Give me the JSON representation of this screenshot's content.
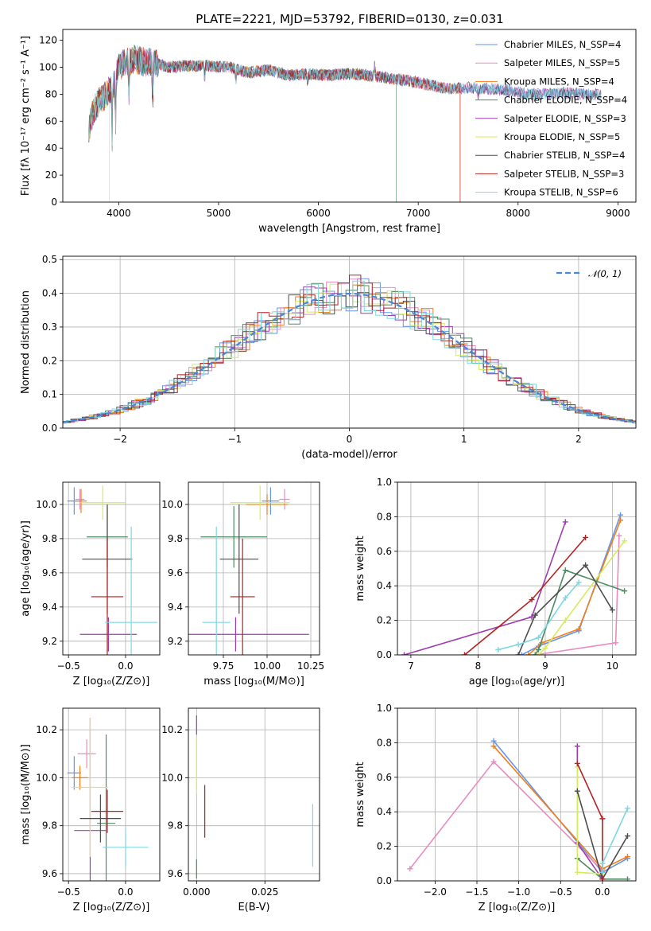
{
  "figure": {
    "title": "PLATE=2221, MJD=53792, FIBERID=0130, z=0.031"
  },
  "series": [
    {
      "name": "Chabrier MILES, N_SSP=4",
      "color": "#6495ED"
    },
    {
      "name": "Salpeter MILES, N_SSP=5",
      "color": "#E98BC1"
    },
    {
      "name": "Kroupa MILES, N_SSP=4",
      "color": "#F07F1C"
    },
    {
      "name": "Chabrier ELODIE, N_SSP=4",
      "color": "#4F8B63"
    },
    {
      "name": "Salpeter ELODIE, N_SSP=3",
      "color": "#9F3DB0"
    },
    {
      "name": "Kroupa ELODIE, N_SSP=5",
      "color": "#D7EB5B"
    },
    {
      "name": "Chabrier STELIB, N_SSP=4",
      "color": "#4D4D4D"
    },
    {
      "name": "Salpeter STELIB, N_SSP=3",
      "color": "#B22222"
    },
    {
      "name": "Kroupa STELIB, N_SSP=6",
      "color": "#7BD8E0"
    }
  ],
  "chart_data": [
    {
      "id": "spectrum",
      "type": "line",
      "title": "PLATE=2221, MJD=53792, FIBERID=0130, z=0.031",
      "xlabel": "wavelength [Angstrom, rest frame]",
      "ylabel": "Flux [fλ 10⁻¹⁷ erg cm⁻² s⁻¹ A⁻¹]",
      "xlim": [
        3440,
        9180
      ],
      "ylim": [
        0,
        128
      ],
      "xticks": [
        "4000",
        "5000",
        "6000",
        "7000",
        "8000",
        "9000"
      ],
      "yticks": [
        "0",
        "20",
        "40",
        "60",
        "80",
        "100",
        "120"
      ],
      "grid": false,
      "legend": "top-right",
      "continuum": [
        [
          3700,
          55
        ],
        [
          3760,
          70
        ],
        [
          3820,
          76
        ],
        [
          3900,
          82
        ],
        [
          3960,
          88
        ],
        [
          4000,
          100
        ],
        [
          4060,
          103
        ],
        [
          4150,
          106
        ],
        [
          4250,
          104
        ],
        [
          4350,
          103
        ],
        [
          4500,
          100
        ],
        [
          4700,
          101
        ],
        [
          4900,
          101
        ],
        [
          5100,
          100
        ],
        [
          5300,
          96
        ],
        [
          5500,
          98
        ],
        [
          5700,
          94
        ],
        [
          5900,
          95
        ],
        [
          6100,
          94
        ],
        [
          6300,
          95
        ],
        [
          6500,
          94
        ],
        [
          6700,
          92
        ],
        [
          6900,
          90
        ],
        [
          7100,
          87
        ],
        [
          7300,
          84
        ],
        [
          7500,
          85
        ],
        [
          7700,
          84
        ],
        [
          7900,
          83
        ],
        [
          8100,
          80
        ],
        [
          8300,
          80
        ],
        [
          8500,
          81
        ],
        [
          8700,
          80
        ],
        [
          8830,
          80
        ]
      ],
      "drops": [
        {
          "series": 5,
          "x": 3905,
          "to": 0
        },
        {
          "series": 3,
          "x": 6780,
          "to": 0
        },
        {
          "series": 2,
          "x": 7420,
          "to": 0
        },
        {
          "series": 7,
          "x": 7420,
          "to": 0
        }
      ]
    },
    {
      "id": "residuals",
      "type": "step",
      "xlabel": "(data-model)/error",
      "ylabel": "Normed distribution",
      "xlim": [
        -2.5,
        2.5
      ],
      "ylim": [
        0,
        0.51
      ],
      "xticks": [
        "−2",
        "−1",
        "0",
        "1",
        "2"
      ],
      "yticks": [
        "0.0",
        "0.1",
        "0.2",
        "0.3",
        "0.4",
        "0.5"
      ],
      "grid": true,
      "legend": "top-right",
      "reference": {
        "name": "𝒩(0, 1)",
        "color": "#4A86D8",
        "mean": 0,
        "sigma": 1
      }
    },
    {
      "id": "age_vs_Z",
      "type": "errorbar",
      "xlabel": "Z [log₁₀(Z/Z⊙)]",
      "ylabel": "age  [log₁₀(age/yr)]",
      "xlim": [
        -0.55,
        0.3
      ],
      "ylim": [
        9.12,
        10.13
      ],
      "xticks": [
        "−0.5",
        "0.0"
      ],
      "yticks": [
        "9.2",
        "9.4",
        "9.6",
        "9.8",
        "10.0"
      ],
      "grid": true,
      "points": [
        {
          "s": 0,
          "x": -0.45,
          "y": 10.02,
          "xe": 0.06,
          "ye": 0.08
        },
        {
          "s": 1,
          "x": -0.4,
          "y": 10.03,
          "xe": 0.04,
          "ye": 0.06
        },
        {
          "s": 2,
          "x": -0.39,
          "y": 10.02,
          "xe": 0.05,
          "ye": 0.07
        },
        {
          "s": 3,
          "x": -0.16,
          "y": 9.81,
          "xe": 0.18,
          "ye": 0.18
        },
        {
          "s": 4,
          "x": -0.15,
          "y": 9.24,
          "xe": 0.25,
          "ye": 0.1
        },
        {
          "s": 5,
          "x": -0.2,
          "y": 10.01,
          "xe": 0.2,
          "ye": 0.1
        },
        {
          "s": 6,
          "x": -0.16,
          "y": 9.68,
          "xe": 0.22,
          "ye": 0.32
        },
        {
          "s": 7,
          "x": -0.16,
          "y": 9.46,
          "xe": 0.14,
          "ye": 0.34
        },
        {
          "s": 8,
          "x": 0.05,
          "y": 9.31,
          "xe": 0.23,
          "ye": 0.56
        }
      ]
    },
    {
      "id": "age_vs_mass",
      "type": "errorbar",
      "xlabel": "mass [log₁₀(M/M⊙)]",
      "ylabel": "",
      "xlim": [
        9.55,
        10.3
      ],
      "ylim": [
        9.12,
        10.13
      ],
      "xticks": [
        "9.75",
        "10.00",
        "10.25"
      ],
      "yticks": [
        "9.2",
        "9.4",
        "9.6",
        "9.8",
        "10.0"
      ],
      "grid": true,
      "points": [
        {
          "s": 0,
          "x": 10.02,
          "y": 10.02,
          "xe": 0.05,
          "ye": 0.08
        },
        {
          "s": 1,
          "x": 10.1,
          "y": 10.03,
          "xe": 0.03,
          "ye": 0.06
        },
        {
          "s": 2,
          "x": 10.0,
          "y": 10.0,
          "xe": 0.12,
          "ye": 0.06
        },
        {
          "s": 3,
          "x": 9.81,
          "y": 9.81,
          "xe": 0.19,
          "ye": 0.18
        },
        {
          "s": 4,
          "x": 9.82,
          "y": 9.24,
          "xe": 0.42,
          "ye": 0.1
        },
        {
          "s": 5,
          "x": 9.96,
          "y": 10.01,
          "xe": 0.17,
          "ye": 0.1
        },
        {
          "s": 6,
          "x": 9.84,
          "y": 9.68,
          "xe": 0.11,
          "ye": 0.32
        },
        {
          "s": 7,
          "x": 9.86,
          "y": 9.46,
          "xe": 0.07,
          "ye": 0.34
        },
        {
          "s": 8,
          "x": 9.71,
          "y": 9.31,
          "xe": 0.08,
          "ye": 0.56
        }
      ]
    },
    {
      "id": "massweight_vs_age",
      "type": "line",
      "xlabel": "age  [log₁₀(age/yr)]",
      "ylabel": "mass weight",
      "xlim": [
        6.8,
        10.35
      ],
      "ylim": [
        0,
        1.0
      ],
      "xticks": [
        "7",
        "8",
        "9",
        "10"
      ],
      "yticks": [
        "0.0",
        "0.2",
        "0.4",
        "0.6",
        "0.8",
        "1.0"
      ],
      "grid": true,
      "lines": [
        {
          "s": 0,
          "x": [
            8.65,
            8.9,
            9.5,
            10.12
          ],
          "y": [
            0.0,
            0.05,
            0.14,
            0.81
          ]
        },
        {
          "s": 1,
          "x": [
            8.85,
            10.05,
            10.1
          ],
          "y": [
            0.0,
            0.07,
            0.69
          ]
        },
        {
          "s": 2,
          "x": [
            8.75,
            8.95,
            9.5,
            10.12
          ],
          "y": [
            0.0,
            0.07,
            0.15,
            0.78
          ]
        },
        {
          "s": 3,
          "x": [
            8.85,
            8.9,
            9.3,
            10.18
          ],
          "y": [
            0.0,
            0.03,
            0.49,
            0.37
          ]
        },
        {
          "s": 4,
          "x": [
            6.9,
            8.8,
            9.3
          ],
          "y": [
            0.0,
            0.22,
            0.77
          ]
        },
        {
          "s": 5,
          "x": [
            8.9,
            9.0,
            9.3,
            10.18
          ],
          "y": [
            0.0,
            0.04,
            0.2,
            0.66
          ]
        },
        {
          "s": 6,
          "x": [
            8.6,
            8.85,
            9.6,
            10.0
          ],
          "y": [
            0.0,
            0.23,
            0.52,
            0.26
          ]
        },
        {
          "s": 7,
          "x": [
            7.8,
            8.8,
            9.6
          ],
          "y": [
            0.0,
            0.32,
            0.68
          ]
        },
        {
          "s": 8,
          "x": [
            8.3,
            8.6,
            8.9,
            9.3,
            9.5
          ],
          "y": [
            0.03,
            0.06,
            0.1,
            0.33,
            0.42
          ]
        }
      ]
    },
    {
      "id": "mass_vs_Z",
      "type": "errorbar",
      "xlabel": "Z [log₁₀(Z/Z⊙)]",
      "ylabel": "mass [log₁₀(M/M⊙)]",
      "xlim": [
        -0.55,
        0.3
      ],
      "ylim": [
        9.57,
        10.29
      ],
      "xticks": [
        "−0.5",
        "0.0"
      ],
      "yticks": [
        "9.6",
        "9.8",
        "10.0",
        "10.2"
      ],
      "grid": true,
      "points": [
        {
          "s": 0,
          "x": -0.45,
          "y": 10.02,
          "xe": 0.06,
          "ye": 0.07
        },
        {
          "s": 1,
          "x": -0.34,
          "y": 10.1,
          "xe": 0.08,
          "ye": 0.06
        },
        {
          "s": 2,
          "x": -0.4,
          "y": 10.0,
          "xe": 0.07,
          "ye": 0.05
        },
        {
          "s": 3,
          "x": -0.17,
          "y": 9.81,
          "xe": 0.08,
          "ye": 0.37
        },
        {
          "s": 4,
          "x": -0.31,
          "y": 9.78,
          "xe": 0.14,
          "ye": 0.47
        },
        {
          "s": 5,
          "x": -0.31,
          "y": 9.96,
          "xe": 0.16,
          "ye": 0.29
        },
        {
          "s": 6,
          "x": -0.22,
          "y": 9.83,
          "xe": 0.18,
          "ye": 0.1
        },
        {
          "s": 7,
          "x": -0.16,
          "y": 9.86,
          "xe": 0.14,
          "ye": 0.09
        },
        {
          "s": 8,
          "x": 0.0,
          "y": 9.71,
          "xe": 0.2,
          "ye": 0.08
        }
      ]
    },
    {
      "id": "mass_vs_EBV",
      "type": "errorbar",
      "xlabel": "E(B-V)",
      "ylabel": "",
      "xlim": [
        -0.003,
        0.045
      ],
      "ylim": [
        9.57,
        10.29
      ],
      "xticks": [
        "0.000",
        "0.025"
      ],
      "yticks": [
        "9.6",
        "9.8",
        "10.0",
        "10.2"
      ],
      "grid": true,
      "points": [
        {
          "s": 4,
          "x": 0.0,
          "y": 10.22,
          "xe": 0,
          "ye": 0.04
        },
        {
          "s": 5,
          "x": 0.0,
          "y": 10.05,
          "xe": 0,
          "ye": 0.12
        },
        {
          "s": 3,
          "x": 0.0,
          "y": 9.62,
          "xe": 0,
          "ye": 0.04
        },
        {
          "s": 7,
          "x": 0.003,
          "y": 9.86,
          "xe": 0,
          "ye": 0.11
        },
        {
          "s": 8,
          "x": 0.0425,
          "y": 9.76,
          "xe": 0,
          "ye": 0.13
        }
      ]
    },
    {
      "id": "massweight_vs_Z",
      "type": "line",
      "xlabel": "Z [log₁₀(Z/Z⊙)]",
      "ylabel": "mass weight",
      "xlim": [
        -2.45,
        0.4
      ],
      "ylim": [
        0,
        1.0
      ],
      "xticks": [
        "−2.0",
        "−1.5",
        "−1.0",
        "−0.5",
        "0.0"
      ],
      "yticks": [
        "0.0",
        "0.2",
        "0.4",
        "0.6",
        "0.8",
        "1.0"
      ],
      "grid": true,
      "lines": [
        {
          "s": 0,
          "x": [
            -1.3,
            0.0,
            0.3
          ],
          "y": [
            0.81,
            0.05,
            0.13
          ]
        },
        {
          "s": 1,
          "x": [
            -2.3,
            -1.3,
            0.0
          ],
          "y": [
            0.07,
            0.69,
            0.06
          ]
        },
        {
          "s": 2,
          "x": [
            -1.3,
            0.0,
            0.3
          ],
          "y": [
            0.78,
            0.07,
            0.14
          ]
        },
        {
          "s": 3,
          "x": [
            -0.3,
            0.0,
            0.3
          ],
          "y": [
            0.13,
            0.01,
            0.01
          ]
        },
        {
          "s": 4,
          "x": [
            -0.3,
            -0.3,
            0.0
          ],
          "y": [
            0.78,
            0.22,
            0.01
          ]
        },
        {
          "s": 5,
          "x": [
            -0.3,
            -0.3,
            0.0
          ],
          "y": [
            0.66,
            0.05,
            0.04
          ]
        },
        {
          "s": 6,
          "x": [
            -0.3,
            0.0,
            0.3
          ],
          "y": [
            0.52,
            0.01,
            0.26
          ]
        },
        {
          "s": 7,
          "x": [
            -0.3,
            0.0,
            0.0
          ],
          "y": [
            0.68,
            0.36,
            0.01
          ]
        },
        {
          "s": 8,
          "x": [
            0.0,
            0.0,
            0.3
          ],
          "y": [
            0.05,
            0.1,
            0.42
          ]
        }
      ]
    }
  ]
}
